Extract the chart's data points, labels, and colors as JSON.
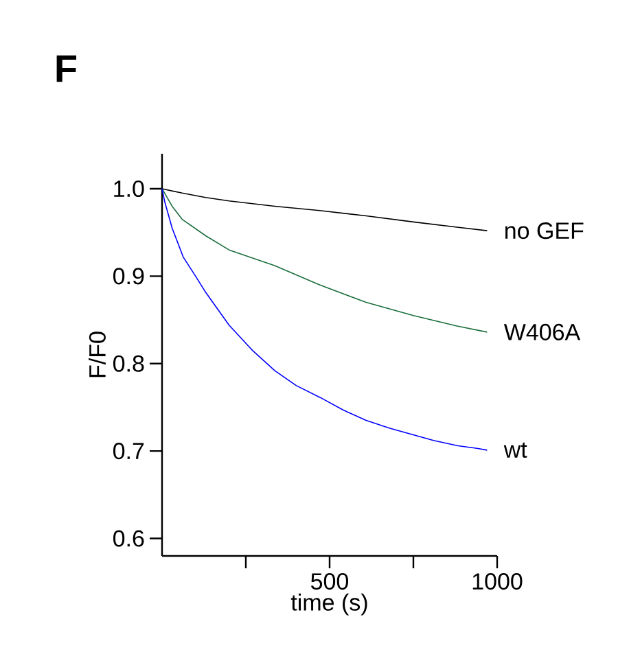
{
  "chart_data": {
    "type": "line",
    "xlabel": "time (s)",
    "ylabel": "F/F0",
    "annotations": [
      "F"
    ],
    "xlim": [
      0,
      1000
    ],
    "ylim": [
      0.58,
      1.04
    ],
    "xticks": [
      {
        "value": 250,
        "label": null
      },
      500,
      {
        "value": 750,
        "label": null
      },
      1000
    ],
    "yticks": [
      0.6,
      0.7,
      0.8,
      0.9,
      {
        "value": 1.0,
        "label": "1.0"
      }
    ],
    "grid": false,
    "legend": false,
    "marker": "none",
    "line_style": "solid",
    "series": [
      {
        "name": "no GEF",
        "color": "#000000",
        "x": [
          0,
          60,
          130,
          200,
          336,
          470,
          609,
          750,
          880,
          970
        ],
        "values": [
          1.0,
          0.995,
          0.99,
          0.986,
          0.98,
          0.975,
          0.969,
          0.962,
          0.956,
          0.952
        ]
      },
      {
        "name": "W406A",
        "color": "#1a6e3c",
        "x": [
          0,
          30,
          60,
          131,
          200,
          336,
          470,
          609,
          750,
          880,
          970
        ],
        "values": [
          1.0,
          0.98,
          0.965,
          0.946,
          0.93,
          0.912,
          0.89,
          0.87,
          0.855,
          0.843,
          0.836
        ]
      },
      {
        "name": "wt",
        "color": "#0000ff",
        "x": [
          0,
          8,
          30,
          63,
          100,
          131,
          200,
          270,
          336,
          400,
          473,
          540,
          609,
          680,
          746,
          810,
          883,
          940,
          970
        ],
        "values": [
          1.0,
          0.985,
          0.955,
          0.922,
          0.9,
          0.881,
          0.844,
          0.815,
          0.792,
          0.775,
          0.761,
          0.747,
          0.735,
          0.726,
          0.719,
          0.712,
          0.706,
          0.703,
          0.701
        ]
      }
    ]
  }
}
